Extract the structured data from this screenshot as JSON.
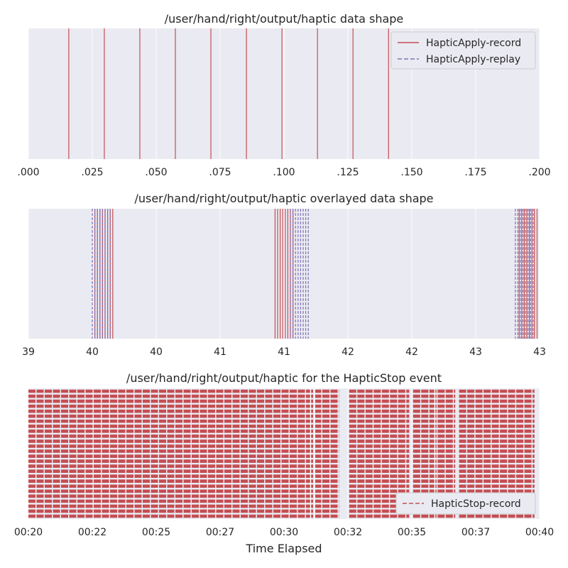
{
  "colors": {
    "background": "#eaeaf2",
    "grid": "#ffffff",
    "record": "#c44e52",
    "replay": "#8172b2",
    "text": "#262626"
  },
  "chart_data": [
    {
      "type": "line",
      "style": "vertical-event-lines",
      "title": "/user/hand/right/output/haptic data shape",
      "xlim": [
        0.0,
        0.2
      ],
      "xticks": [
        0.0,
        0.025,
        0.05,
        0.075,
        0.1,
        0.125,
        0.15,
        0.175,
        0.2
      ],
      "xtick_labels": [
        ".000",
        ".025",
        ".050",
        ".075",
        ".100",
        ".125",
        ".150",
        ".175",
        ".200"
      ],
      "grid": true,
      "legend_position": "top-right",
      "series": [
        {
          "name": "HapticApply-record",
          "line_style": "solid",
          "color": "record",
          "x": [
            0.0158,
            0.0297,
            0.0436,
            0.0575,
            0.0714,
            0.0853,
            0.0992,
            0.1131,
            0.127,
            0.1409
          ]
        },
        {
          "name": "HapticApply-replay",
          "line_style": "dashed",
          "color": "replay",
          "x": []
        }
      ]
    },
    {
      "type": "line",
      "style": "vertical-event-lines",
      "title": "/user/hand/right/output/haptic overlayed data shape",
      "xlim": [
        39.0,
        43.0
      ],
      "xticks": [
        39.0,
        39.5,
        40.0,
        40.5,
        41.0,
        41.5,
        42.0,
        42.5,
        43.0
      ],
      "xtick_labels": [
        "39",
        "40",
        "40",
        "41",
        "41",
        "42",
        "42",
        "43",
        "43"
      ],
      "grid": true,
      "series": [
        {
          "name": "HapticApply-record",
          "line_style": "solid",
          "color": "record",
          "x": [
            39.52,
            39.54,
            39.56,
            39.58,
            39.6,
            39.62,
            39.64,
            39.66,
            40.93,
            40.95,
            40.97,
            40.99,
            41.01,
            41.03,
            41.05,
            41.07,
            42.84,
            42.86,
            42.88,
            42.9,
            42.92,
            42.94,
            42.96,
            42.98
          ]
        },
        {
          "name": "HapticApply-replay",
          "line_style": "dashed",
          "color": "replay",
          "x": [
            39.5,
            39.52,
            39.54,
            39.56,
            39.58,
            39.6,
            39.62,
            39.64,
            41.05,
            41.07,
            41.09,
            41.11,
            41.13,
            41.15,
            41.17,
            41.19,
            42.81,
            42.83,
            42.85,
            42.87,
            42.89,
            42.91,
            42.93,
            42.95
          ]
        }
      ]
    },
    {
      "type": "line",
      "style": "dense-horizontal-dashed-lines",
      "title": "/user/hand/right/output/haptic for the HapticStop event",
      "xlabel": "Time Elapsed",
      "xlim": [
        20,
        40
      ],
      "xticks": [
        20,
        22.5,
        25,
        27.5,
        30,
        32.5,
        35,
        37.5,
        40
      ],
      "xtick_labels": [
        "00:20",
        "00:22",
        "00:25",
        "00:27",
        "00:30",
        "00:32",
        "00:35",
        "00:37",
        "00:40"
      ],
      "grid": true,
      "legend_position": "bottom-right",
      "series": [
        {
          "name": "HapticStop-record",
          "line_style": "dashed",
          "color": "record",
          "rows": 26,
          "segments": [
            [
              20,
              32.15
            ],
            [
              32.55,
              34.9
            ],
            [
              35.05,
              36.7
            ],
            [
              36.85,
              39.8
            ]
          ],
          "gaps": [
            31.04,
            31.2,
            35.9
          ]
        }
      ]
    }
  ]
}
